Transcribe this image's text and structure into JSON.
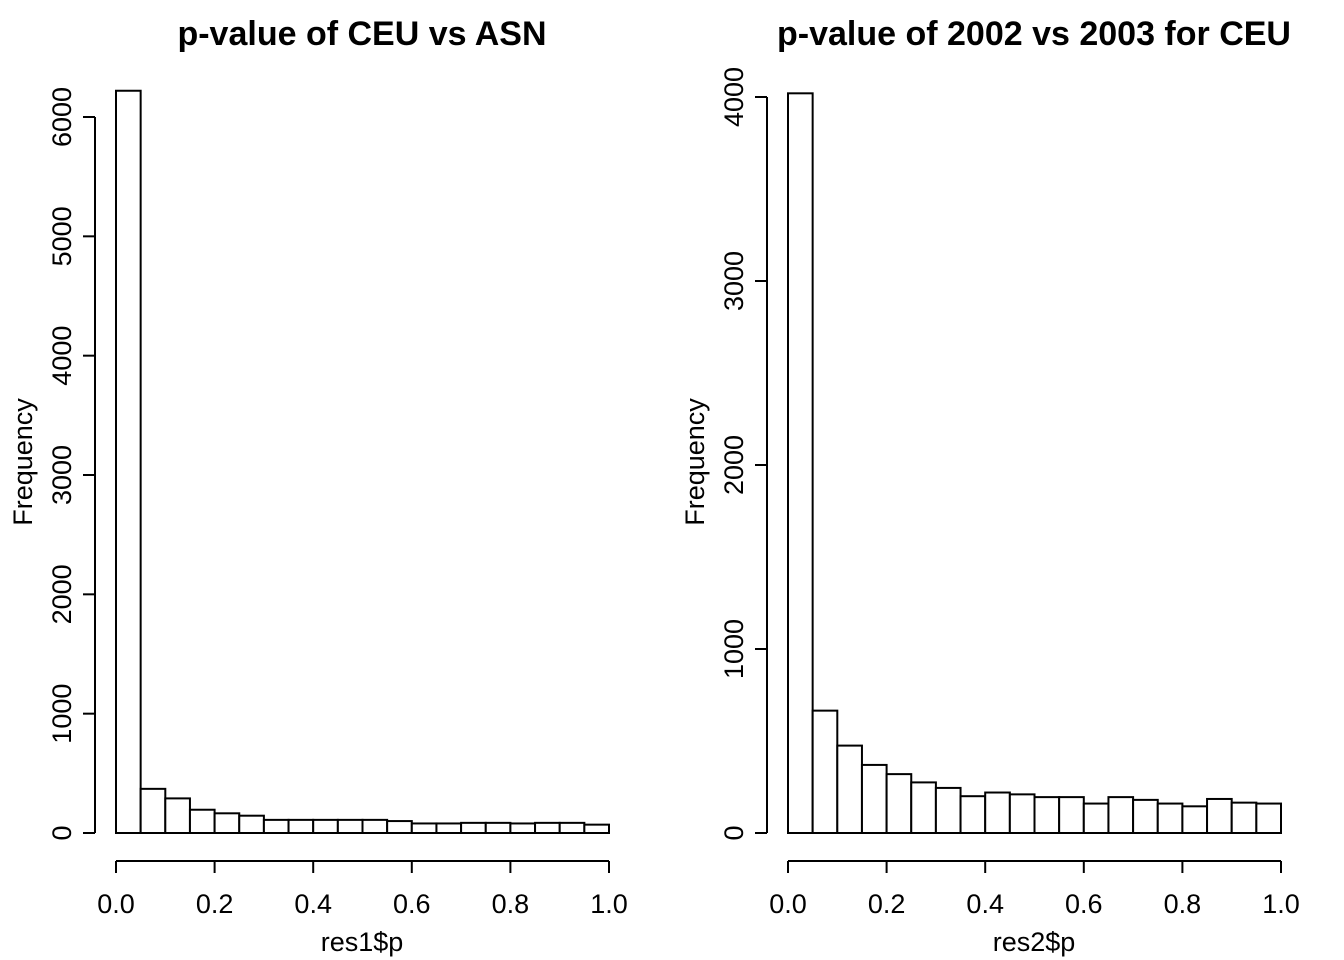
{
  "chart_data": [
    {
      "type": "bar",
      "title": "p-value of CEU vs ASN",
      "xlabel": "res1$p",
      "ylabel": "Frequency",
      "bin_edges": [
        0.0,
        0.05,
        0.1,
        0.15,
        0.2,
        0.25,
        0.3,
        0.35,
        0.4,
        0.45,
        0.5,
        0.55,
        0.6,
        0.65,
        0.7,
        0.75,
        0.8,
        0.85,
        0.9,
        0.95,
        1.0
      ],
      "values": [
        6220,
        370,
        290,
        195,
        165,
        145,
        110,
        110,
        110,
        110,
        110,
        100,
        80,
        80,
        85,
        85,
        80,
        85,
        85,
        70
      ],
      "xticks": [
        "0.0",
        "0.2",
        "0.4",
        "0.6",
        "0.8",
        "1.0"
      ],
      "yticks": [
        "0",
        "1000",
        "2000",
        "3000",
        "4000",
        "5000",
        "6000"
      ],
      "xlim": [
        0,
        1
      ],
      "ylim": [
        0,
        6000
      ],
      "grid": false,
      "legend": "none"
    },
    {
      "type": "bar",
      "title": "p-value of 2002 vs 2003 for CEU",
      "xlabel": "res2$p",
      "ylabel": "Frequency",
      "bin_edges": [
        0.0,
        0.05,
        0.1,
        0.15,
        0.2,
        0.25,
        0.3,
        0.35,
        0.4,
        0.45,
        0.5,
        0.55,
        0.6,
        0.65,
        0.7,
        0.75,
        0.8,
        0.85,
        0.9,
        0.95,
        1.0
      ],
      "values": [
        4020,
        665,
        475,
        370,
        320,
        275,
        245,
        200,
        220,
        210,
        195,
        195,
        160,
        195,
        180,
        160,
        145,
        185,
        165,
        160
      ],
      "xticks": [
        "0.0",
        "0.2",
        "0.4",
        "0.6",
        "0.8",
        "1.0"
      ],
      "yticks": [
        "0",
        "1000",
        "2000",
        "3000",
        "4000"
      ],
      "xlim": [
        0,
        1
      ],
      "ylim": [
        0,
        4000
      ],
      "grid": false,
      "legend": "none"
    }
  ]
}
